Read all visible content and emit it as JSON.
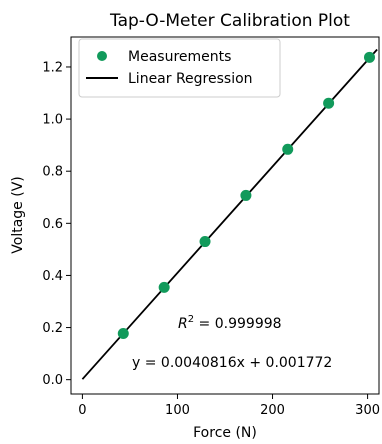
{
  "chart_data": {
    "type": "scatter",
    "title": "Tap-O-Meter Calibration Plot",
    "xlabel": "Force (N)",
    "ylabel": "Voltage (V)",
    "xlim": [
      -12,
      312
    ],
    "ylim": [
      -0.055,
      1.315
    ],
    "xticks": [
      0,
      100,
      200,
      300
    ],
    "yticks": [
      0.0,
      0.2,
      0.4,
      0.6,
      0.8,
      1.0,
      1.2
    ],
    "xtick_labels": [
      "0",
      "100",
      "200",
      "300"
    ],
    "ytick_labels": [
      "0.0",
      "0.2",
      "0.4",
      "0.6",
      "0.8",
      "1.0",
      "1.2"
    ],
    "grid": false,
    "legend_position": "top-left",
    "series": [
      {
        "name": "Measurements",
        "kind": "scatter",
        "color": "#119a5b",
        "x": [
          43,
          86,
          129,
          172,
          216,
          259,
          302
        ],
        "y": [
          0.177,
          0.354,
          0.53,
          0.707,
          0.884,
          1.061,
          1.237
        ]
      },
      {
        "name": "Linear Regression",
        "kind": "line",
        "color": "#000000",
        "x": [
          0,
          310
        ],
        "y": [
          0.001772,
          1.267068
        ]
      }
    ],
    "annotations": {
      "r2_label": "R",
      "r2_sup": "2",
      "r2_value": " = 0.999998",
      "equation": "y = 0.0040816x + 0.001772"
    }
  }
}
